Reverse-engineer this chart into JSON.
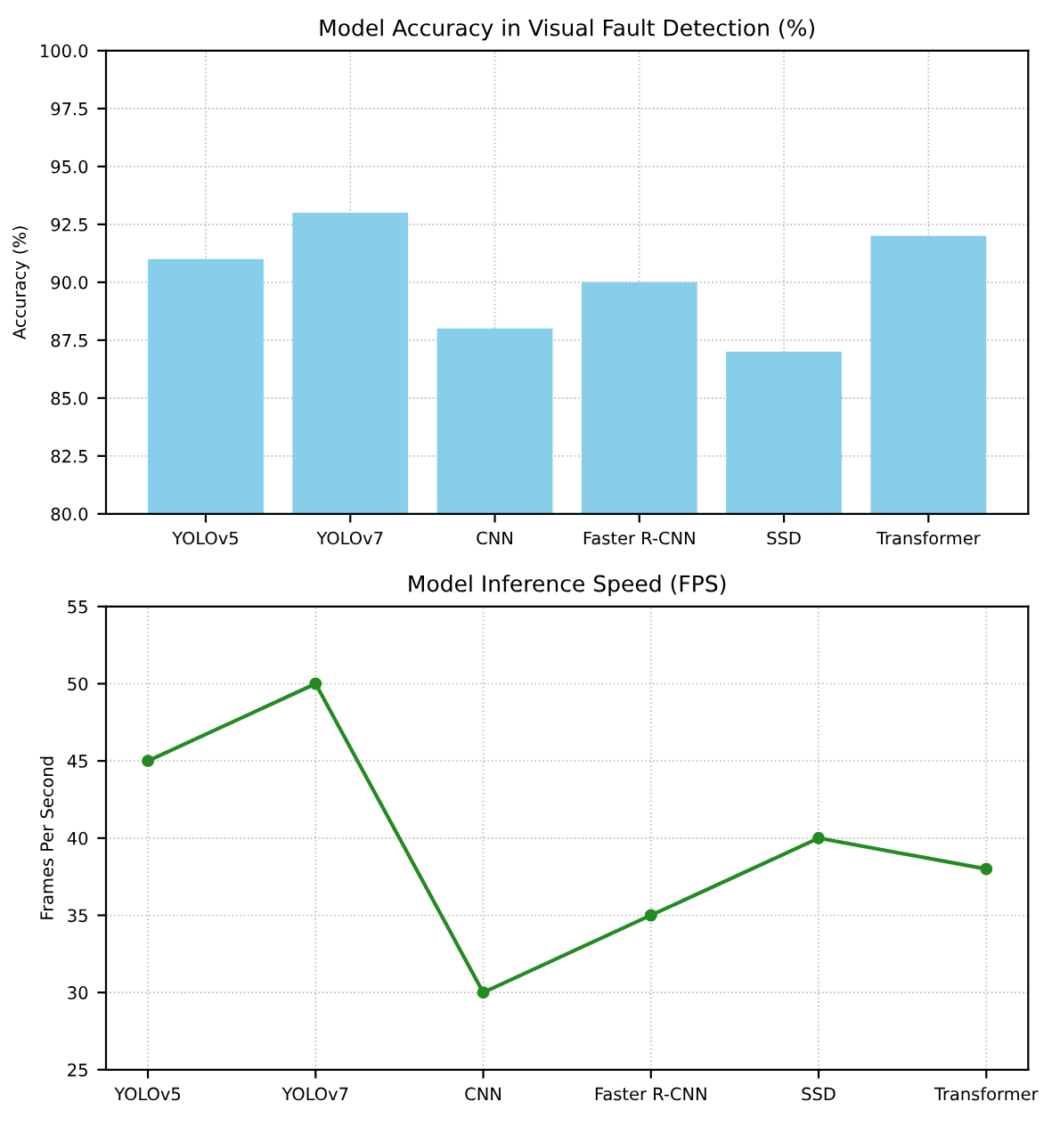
{
  "chart_data": [
    {
      "type": "bar",
      "title": "Model Accuracy in Visual Fault Detection (%)",
      "ylabel": "Accuracy (%)",
      "categories": [
        "YOLOv5",
        "YOLOv7",
        "CNN",
        "Faster R-CNN",
        "SSD",
        "Transformer"
      ],
      "values": [
        91,
        93,
        88,
        90,
        87,
        92
      ],
      "color": "#87ceeb",
      "ylim": [
        80,
        100
      ],
      "yticks": [
        {
          "value": 80,
          "label": "80.0"
        },
        82.5,
        {
          "value": 85,
          "label": "85.0"
        },
        87.5,
        {
          "value": 90,
          "label": "90.0"
        },
        92.5,
        {
          "value": 95,
          "label": "95.0"
        },
        97.5,
        {
          "value": 100,
          "label": "100.0"
        }
      ],
      "grid": true
    },
    {
      "type": "line",
      "title": "Model Inference Speed (FPS)",
      "ylabel": "Frames Per Second",
      "categories": [
        "YOLOv5",
        "YOLOv7",
        "CNN",
        "Faster R-CNN",
        "SSD",
        "Transformer"
      ],
      "values": [
        45,
        50,
        30,
        35,
        40,
        38
      ],
      "color": "#228b22",
      "marker": "circle",
      "ylim": [
        25,
        55
      ],
      "yticks": [
        25,
        30,
        35,
        40,
        45,
        50,
        55
      ],
      "grid": true
    }
  ]
}
